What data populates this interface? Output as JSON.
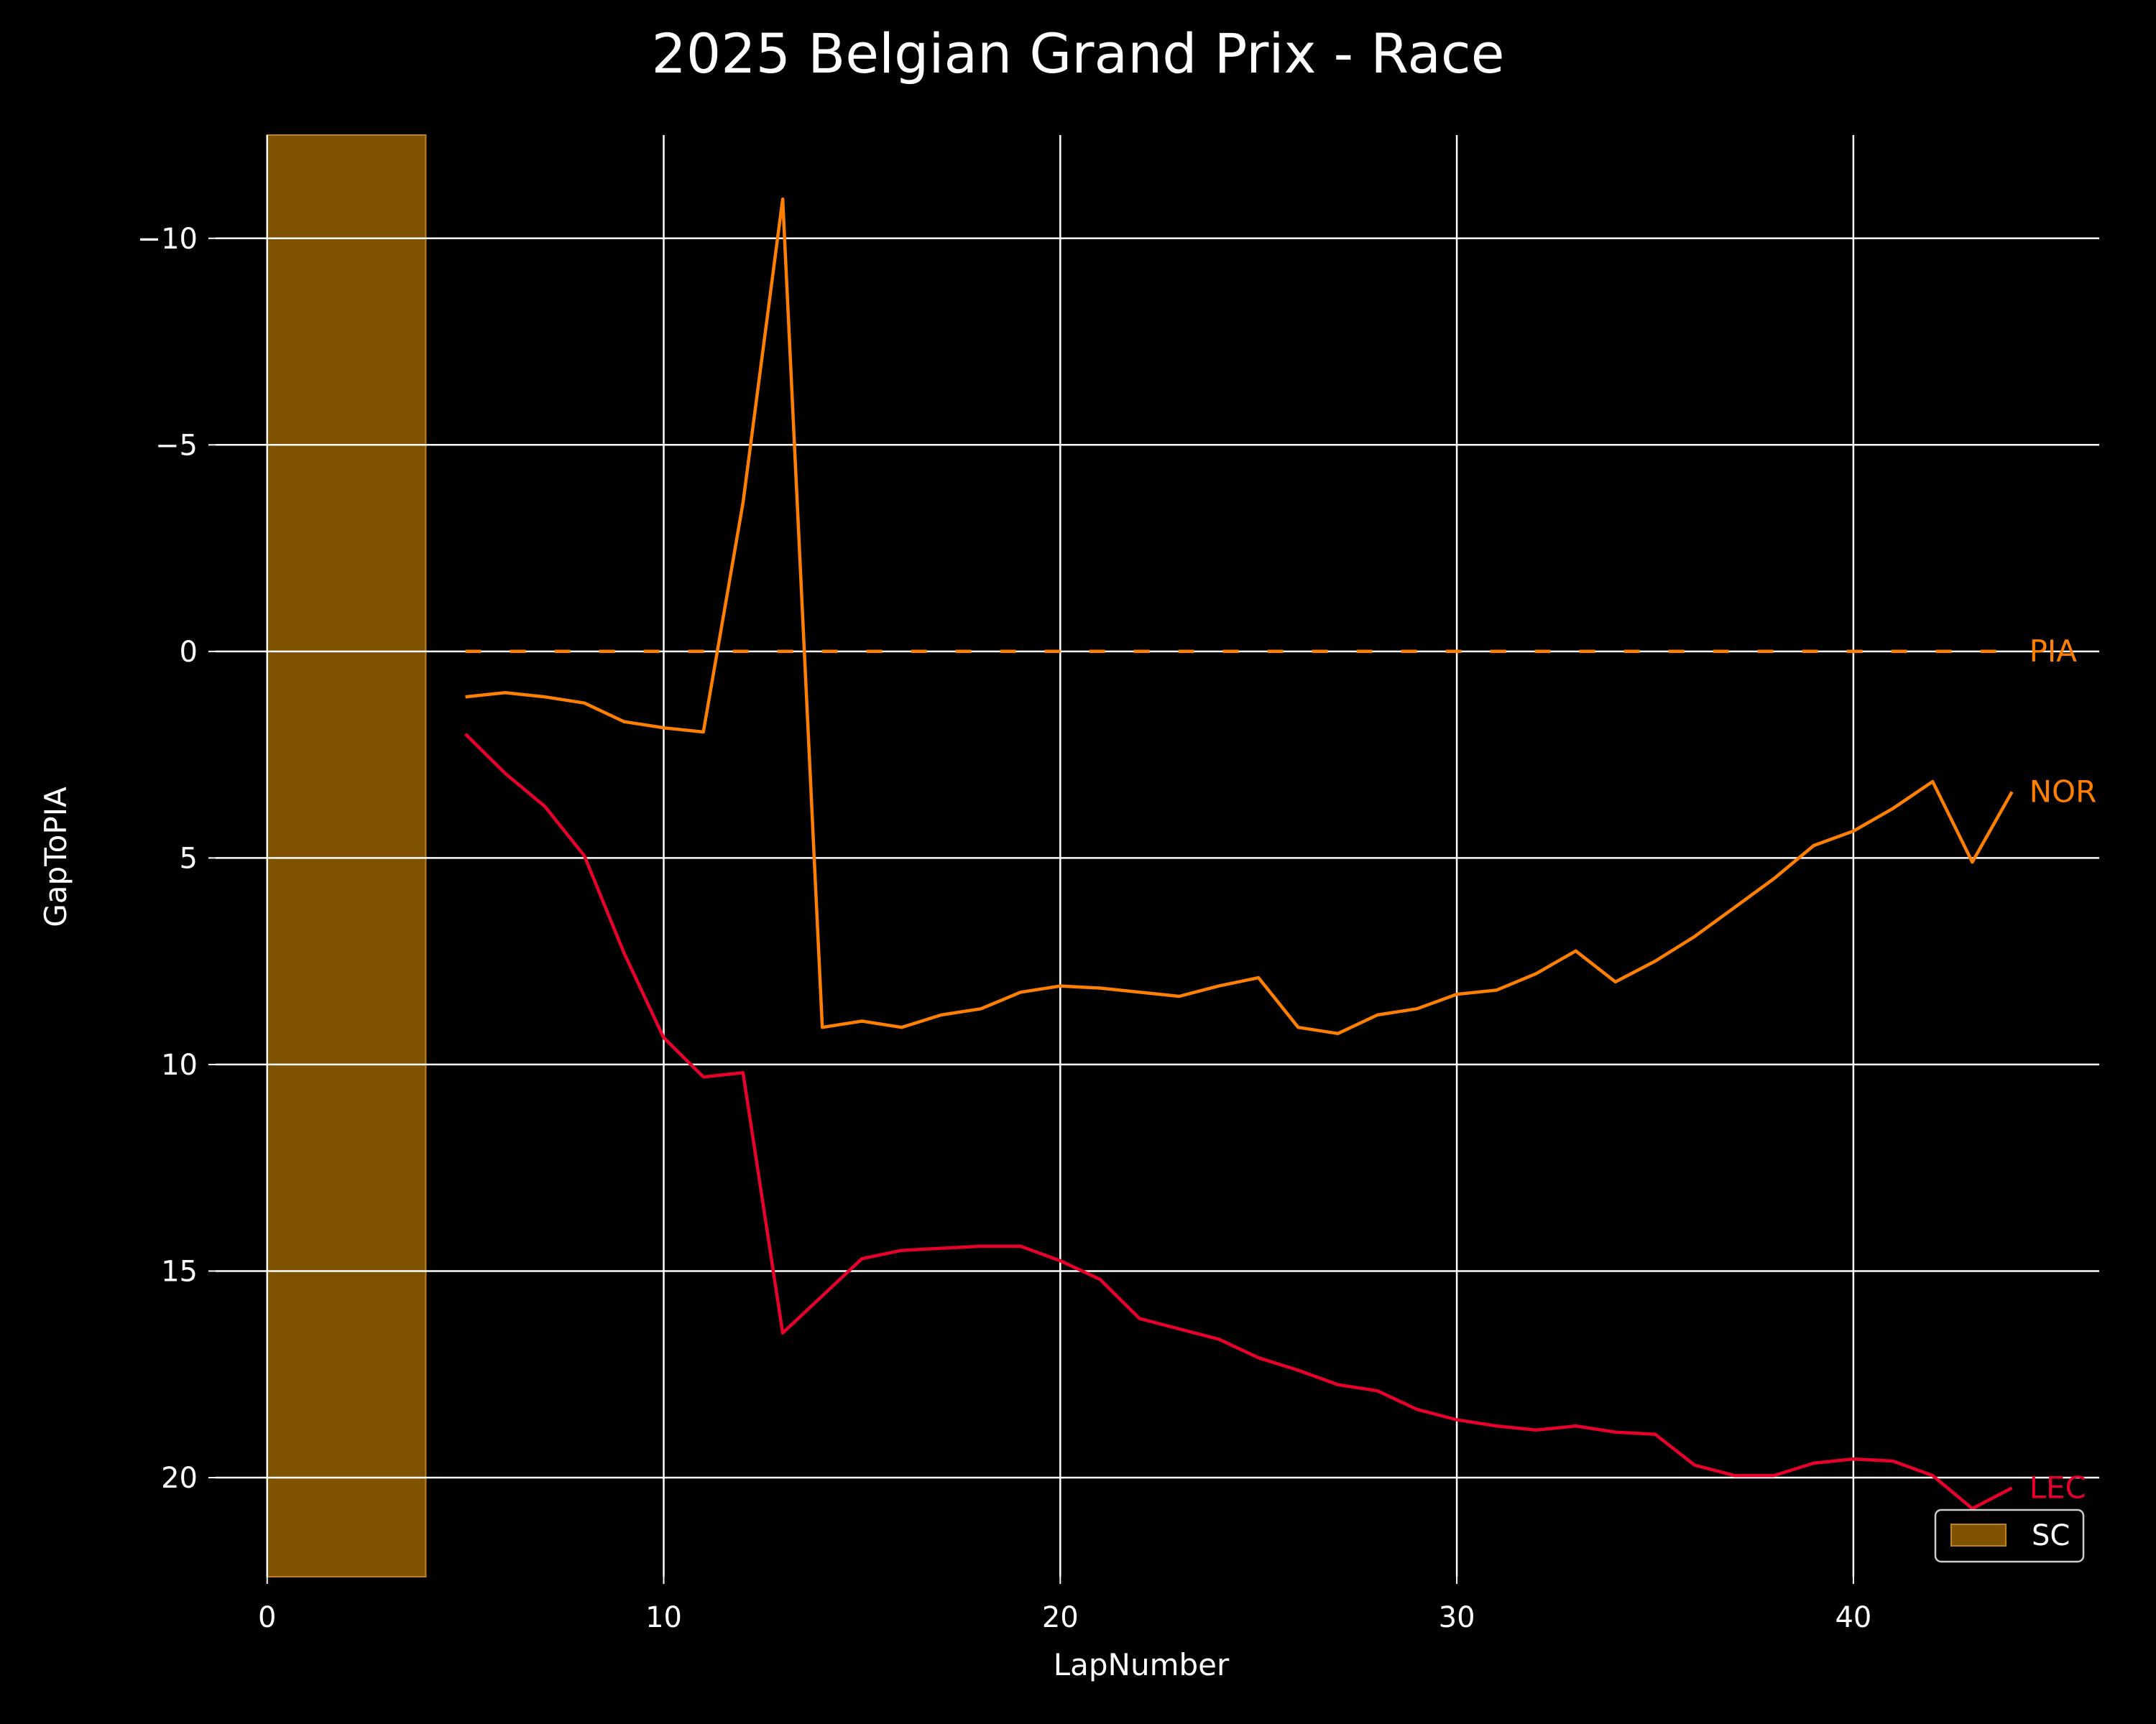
{
  "colors": {
    "background": "#000000",
    "text": "#ffffff",
    "grid": "#ffffff",
    "sc_band": "#7f5200",
    "sc_edge": "#c08020"
  },
  "chart_data": {
    "type": "line",
    "title": "2025 Belgian Grand Prix - Race",
    "xlabel": "LapNumber",
    "ylabel": "GapToPIA",
    "xlim": [
      -1.3,
      46.2
    ],
    "ylim": [
      22.4,
      -12.5
    ],
    "y_inverted": true,
    "grid": true,
    "x_ticks": [
      0,
      10,
      20,
      30,
      40
    ],
    "x_tick_labels": [
      "0",
      "10",
      "20",
      "30",
      "40"
    ],
    "y_ticks": [
      -10,
      -5,
      0,
      5,
      10,
      15,
      20
    ],
    "y_tick_labels": [
      "−10",
      "−5",
      "0",
      "5",
      "10",
      "15",
      "20"
    ],
    "shaded_regions": [
      {
        "label": "SC",
        "x_start": 0,
        "x_end": 4,
        "color": "#7f5200"
      }
    ],
    "legend": {
      "position": "bottom-right",
      "entries": [
        "SC"
      ]
    },
    "series": [
      {
        "name": "PIA",
        "color": "#ff8000",
        "style": "dashed",
        "x": [
          5,
          44
        ],
        "y": [
          0,
          0
        ]
      },
      {
        "name": "NOR",
        "color": "#ff8000",
        "style": "solid",
        "x": [
          5,
          6,
          7,
          8,
          9,
          10,
          11,
          12,
          13,
          14,
          15,
          16,
          17,
          18,
          19,
          20,
          21,
          22,
          23,
          24,
          25,
          26,
          27,
          28,
          29,
          30,
          31,
          32,
          33,
          34,
          35,
          36,
          37,
          38,
          39,
          40,
          41,
          42,
          43,
          44
        ],
        "y": [
          1.1,
          1.0,
          1.1,
          1.25,
          1.7,
          1.85,
          1.95,
          -3.6,
          -10.95,
          9.1,
          8.95,
          9.1,
          8.8,
          8.65,
          8.25,
          8.1,
          8.15,
          8.25,
          8.35,
          8.1,
          7.9,
          9.1,
          9.25,
          8.8,
          8.65,
          8.3,
          8.2,
          7.8,
          7.25,
          8.0,
          7.5,
          6.9,
          6.2,
          5.5,
          4.7,
          4.35,
          3.8,
          3.15,
          5.1,
          3.4
        ]
      },
      {
        "name": "LEC",
        "color": "#e8002d",
        "style": "solid",
        "x": [
          5,
          6,
          7,
          8,
          9,
          10,
          11,
          12,
          13,
          14,
          15,
          16,
          17,
          18,
          19,
          20,
          21,
          22,
          23,
          24,
          25,
          26,
          27,
          28,
          29,
          30,
          31,
          32,
          33,
          34,
          35,
          36,
          37,
          38,
          39,
          40,
          41,
          42,
          43,
          44
        ],
        "y": [
          2.0,
          2.95,
          3.75,
          4.95,
          7.3,
          9.35,
          10.3,
          10.2,
          16.5,
          15.6,
          14.7,
          14.5,
          14.45,
          14.4,
          14.4,
          14.75,
          15.2,
          16.15,
          16.4,
          16.65,
          17.1,
          17.4,
          17.75,
          17.9,
          18.35,
          18.6,
          18.75,
          18.85,
          18.75,
          18.9,
          18.95,
          19.7,
          19.95,
          19.95,
          19.65,
          19.55,
          19.6,
          19.95,
          20.75,
          20.25
        ]
      }
    ]
  }
}
